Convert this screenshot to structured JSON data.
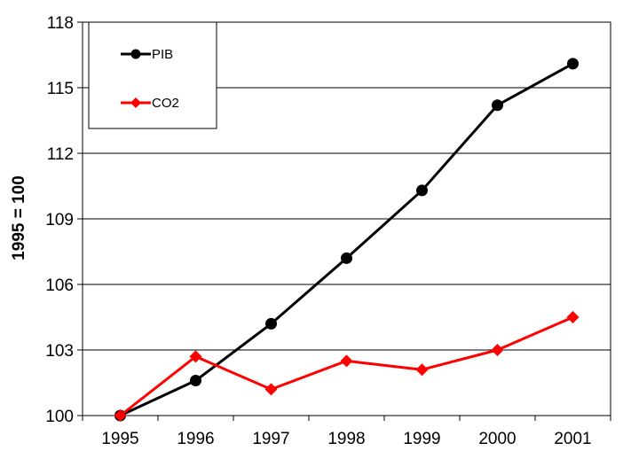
{
  "chart_data": {
    "type": "line",
    "title": "",
    "xlabel": "",
    "ylabel": "1995 = 100",
    "x": [
      "1995",
      "1996",
      "1997",
      "1998",
      "1999",
      "2000",
      "2001"
    ],
    "ylim": [
      100,
      118
    ],
    "yticks": [
      "100",
      "103",
      "106",
      "109",
      "112",
      "115",
      "118"
    ],
    "grid": "horizontal",
    "legend_position": "top-left",
    "series": [
      {
        "name": "PIB",
        "color": "#000000",
        "marker": "circle",
        "values": [
          100,
          101.6,
          104.2,
          107.2,
          110.3,
          114.2,
          116.1
        ]
      },
      {
        "name": "CO2",
        "color": "#ff0000",
        "marker": "diamond",
        "values": [
          100,
          102.7,
          101.2,
          102.5,
          102.1,
          103.0,
          104.5
        ]
      }
    ]
  }
}
